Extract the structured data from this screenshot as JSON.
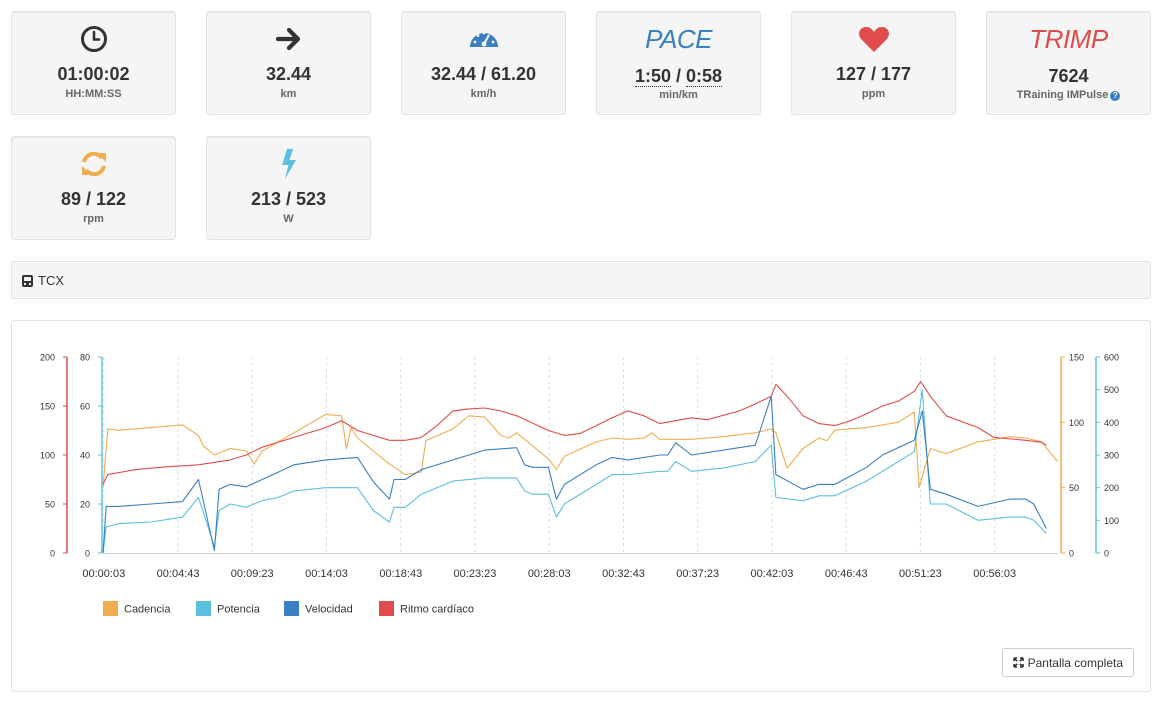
{
  "stats": [
    {
      "icon": "clock-icon",
      "value": "01:00:02",
      "unit": "HH:MM:SS"
    },
    {
      "icon": "arrow-right-icon",
      "value": "32.44",
      "unit": "km"
    },
    {
      "icon": "speedometer-icon",
      "value": "32.44 / 61.20",
      "unit": "km/h"
    },
    {
      "icon_text": "PACE",
      "value_a": "1:50",
      "value_sep": " / ",
      "value_b": "0:58",
      "unit": "min/km"
    },
    {
      "icon": "heart-icon",
      "value": "127 / 177",
      "unit": "ppm"
    },
    {
      "icon_text": "TRIMP",
      "value": "7624",
      "unit": "TRaining IMPulse",
      "help": "?"
    },
    {
      "icon": "refresh-icon",
      "value": "89 / 122",
      "unit": "rpm"
    },
    {
      "icon": "lightning-icon",
      "value": "213 / 523",
      "unit": "W"
    }
  ],
  "colors": {
    "clock": "#333333",
    "arrow": "#333333",
    "gauge": "#3a7fc1",
    "pace": "#3a7fc1",
    "heart": "#e04c4c",
    "trimp": "#e04c4c",
    "cadence": "#f0ad4e",
    "power": "#5bc0de",
    "speed": "#3a7fc1",
    "heart_rate": "#e04c4c"
  },
  "tcx": {
    "icon": "file-icon",
    "label": "TCX"
  },
  "fullscreen_button": {
    "icon": "expand-icon",
    "label": "Pantalla completa"
  },
  "chart_data": {
    "type": "line",
    "x_unit": "elapsed time",
    "x_ticks": [
      "00:00:03",
      "00:04:43",
      "00:09:23",
      "00:14:03",
      "00:18:43",
      "00:23:23",
      "00:28:03",
      "00:32:43",
      "00:37:23",
      "00:42:03",
      "00:46:43",
      "00:51:23",
      "00:56:03"
    ],
    "x_tick_minutes": [
      0.05,
      4.72,
      9.38,
      14.05,
      18.72,
      23.38,
      28.05,
      32.72,
      37.38,
      42.05,
      46.72,
      51.38,
      56.05
    ],
    "xlim": [
      0,
      60.03
    ],
    "grid": "vertical dashed",
    "legend_position": "bottom-left",
    "axes": [
      {
        "side": "left",
        "color": "#e04c4c",
        "ticks": [
          "200",
          "150",
          "100",
          "50",
          "0"
        ],
        "ylim": [
          0,
          200
        ],
        "series": "Ritmo cardíaco"
      },
      {
        "side": "left",
        "color": "#5bc0de",
        "ticks": [
          "80",
          "60",
          "40",
          "20",
          "0"
        ],
        "ylim": [
          0,
          80
        ],
        "series": "Velocidad"
      },
      {
        "side": "right",
        "color": "#f0ad4e",
        "ticks": [
          "150",
          "100",
          "50",
          "0"
        ],
        "ylim": [
          0,
          150
        ],
        "series": "Cadencia"
      },
      {
        "side": "right",
        "color": "#5bc0de",
        "ticks": [
          "600",
          "500",
          "400",
          "300",
          "200",
          "100",
          "0"
        ],
        "ylim": [
          0,
          600
        ],
        "series": "Potencia"
      }
    ],
    "series": [
      {
        "name": "Cadencia",
        "color": "#f0ad4e",
        "axis": 2,
        "x": [
          0,
          0.3,
          1,
          3,
          5,
          6,
          6.3,
          7,
          8,
          9,
          9.5,
          10,
          12,
          14,
          15,
          15.3,
          15.6,
          16,
          18,
          19,
          20,
          20.3,
          22,
          23,
          24,
          25,
          25.5,
          26,
          28,
          28.5,
          29,
          31,
          32,
          33,
          34,
          34.5,
          35,
          37,
          39,
          41,
          42,
          42.3,
          43,
          44,
          45,
          45.5,
          46,
          48,
          50,
          51,
          51.3,
          52,
          53,
          55,
          57,
          58,
          59,
          60
        ],
        "y": [
          50,
          95,
          94,
          96,
          98,
          90,
          82,
          75,
          80,
          78,
          68,
          78,
          92,
          106,
          105,
          80,
          96,
          88,
          68,
          60,
          62,
          86,
          95,
          105,
          104,
          90,
          88,
          92,
          72,
          64,
          74,
          85,
          88,
          87,
          88,
          92,
          87,
          87,
          89,
          92,
          95,
          92,
          65,
          80,
          88,
          86,
          94,
          96,
          100,
          108,
          50,
          80,
          76,
          85,
          89,
          88,
          85,
          70
        ]
      },
      {
        "name": "Potencia",
        "color": "#5bc0de",
        "axis": 3,
        "x": [
          0,
          0.2,
          1,
          3,
          5,
          6,
          7,
          7.3,
          8,
          9,
          10,
          11,
          12,
          14,
          16,
          17,
          18,
          18.3,
          19,
          20,
          22,
          24,
          26,
          26.5,
          27,
          28,
          28.5,
          29,
          31,
          32,
          33,
          35,
          35.5,
          36,
          37,
          39,
          41,
          42,
          42.3,
          44,
          45,
          46,
          48,
          49,
          51,
          51.5,
          52,
          53,
          55,
          57,
          58,
          58.5,
          59.3
        ],
        "y": [
          0,
          80,
          90,
          95,
          110,
          170,
          20,
          130,
          150,
          140,
          160,
          170,
          190,
          200,
          200,
          130,
          95,
          140,
          140,
          180,
          220,
          230,
          230,
          190,
          180,
          180,
          110,
          150,
          210,
          240,
          240,
          250,
          250,
          280,
          250,
          260,
          280,
          330,
          170,
          160,
          175,
          175,
          220,
          250,
          310,
          500,
          150,
          150,
          100,
          110,
          110,
          100,
          60
        ]
      },
      {
        "name": "Velocidad",
        "color": "#3a7fc1",
        "axis": 1,
        "x": [
          0,
          0.2,
          1,
          3,
          5,
          6,
          7,
          7.3,
          8,
          9,
          10,
          11,
          12,
          14,
          16,
          17,
          18,
          18.3,
          19,
          20,
          22,
          24,
          26,
          26.5,
          27,
          28,
          28.5,
          29,
          31,
          32,
          33,
          35,
          35.5,
          36,
          37,
          39,
          41,
          42,
          42.3,
          44,
          45,
          46,
          48,
          49,
          51,
          51.5,
          52,
          53,
          55,
          57,
          58,
          58.5,
          59.3
        ],
        "y": [
          0,
          19,
          19,
          20,
          21,
          30,
          1,
          26,
          28,
          27,
          30,
          33,
          36,
          38,
          39,
          29,
          22,
          30,
          30,
          34,
          38,
          42,
          43,
          36,
          35,
          35,
          22,
          28,
          36,
          39,
          38,
          40,
          40,
          45,
          40,
          42,
          44,
          64,
          32,
          26,
          28,
          28,
          35,
          40,
          46,
          58,
          26,
          24,
          19,
          22,
          22,
          20,
          10
        ]
      },
      {
        "name": "Ritmo cardíaco",
        "color": "#e04c4c",
        "axis": 0,
        "x": [
          0,
          0.3,
          2,
          4,
          6,
          8,
          9,
          10,
          12,
          14,
          15,
          16,
          18,
          19,
          20,
          21,
          22,
          23,
          24,
          25,
          26,
          28,
          29,
          30,
          31,
          32,
          33,
          34,
          35,
          36,
          37,
          38,
          40,
          41,
          42,
          42.3,
          43,
          44,
          45,
          46,
          47,
          48,
          49,
          50,
          51,
          51.4,
          52,
          53,
          55,
          56,
          58,
          59,
          59.3
        ],
        "y": [
          70,
          80,
          85,
          88,
          90,
          95,
          100,
          108,
          118,
          128,
          135,
          125,
          115,
          115,
          118,
          130,
          145,
          147,
          148,
          145,
          140,
          125,
          120,
          122,
          130,
          138,
          145,
          140,
          132,
          135,
          138,
          136,
          145,
          152,
          160,
          172,
          160,
          140,
          132,
          130,
          135,
          142,
          150,
          155,
          165,
          175,
          160,
          140,
          128,
          118,
          115,
          113,
          110
        ]
      }
    ]
  }
}
